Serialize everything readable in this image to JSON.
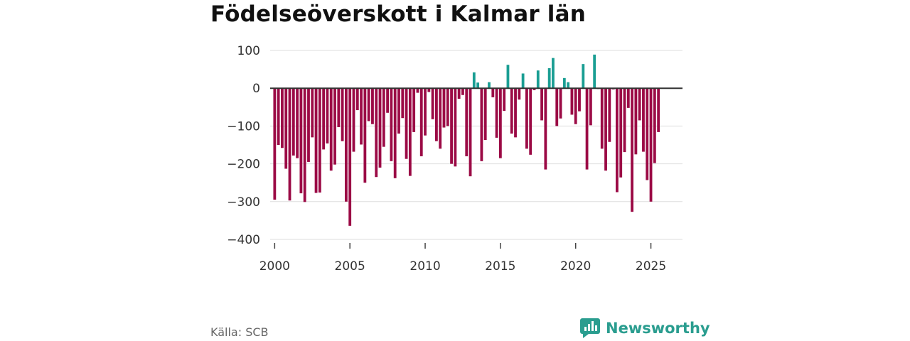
{
  "title": "Födelseöverskott i Kalmar län",
  "source": "Källa: SCB",
  "brand": "Newsworthy",
  "colors": {
    "positive": "#1a9e93",
    "negative": "#9b0a45",
    "grid": "#dddddd",
    "zero_line": "#333333",
    "brand": "#2a9d8f"
  },
  "chart_data": {
    "type": "bar",
    "x_unit": "year (quarterly bars)",
    "ylim": [
      -400,
      100
    ],
    "yticks": [
      100,
      0,
      -100,
      -200,
      -300,
      -400
    ],
    "ytick_labels": [
      "100",
      "0",
      "−100",
      "−200",
      "−300",
      "−400"
    ],
    "xticks": [
      2000,
      2005,
      2010,
      2015,
      2020,
      2025
    ],
    "xtick_labels": [
      "2000",
      "2005",
      "2010",
      "2015",
      "2020",
      "2025"
    ],
    "xlim": [
      1999.7,
      2027.1
    ],
    "start_year": 2000.0,
    "step": 0.25,
    "values": [
      -295,
      -150,
      -158,
      -213,
      -297,
      -178,
      -185,
      -278,
      -301,
      -195,
      -130,
      -277,
      -276,
      -162,
      -146,
      -218,
      -202,
      -103,
      -140,
      -300,
      -364,
      -168,
      -58,
      -149,
      -250,
      -87,
      -95,
      -235,
      -210,
      -155,
      -65,
      -193,
      -238,
      -120,
      -79,
      -187,
      -232,
      -116,
      -12,
      -180,
      -125,
      -10,
      -82,
      -140,
      -160,
      -104,
      -100,
      -200,
      -207,
      -28,
      -18,
      -180,
      -233,
      42,
      15,
      -193,
      -137,
      16,
      -24,
      -131,
      -185,
      -60,
      62,
      -120,
      -130,
      -30,
      39,
      -160,
      -176,
      -5,
      47,
      -85,
      -215,
      53,
      80,
      -100,
      -80,
      27,
      16,
      -70,
      -95,
      -61,
      64,
      -215,
      -98,
      89,
      -2,
      -160,
      -218,
      -142,
      -3,
      -275,
      -236,
      -169,
      -52,
      -327,
      -175,
      -85,
      -168,
      -243,
      -300,
      -198,
      -116
    ]
  }
}
